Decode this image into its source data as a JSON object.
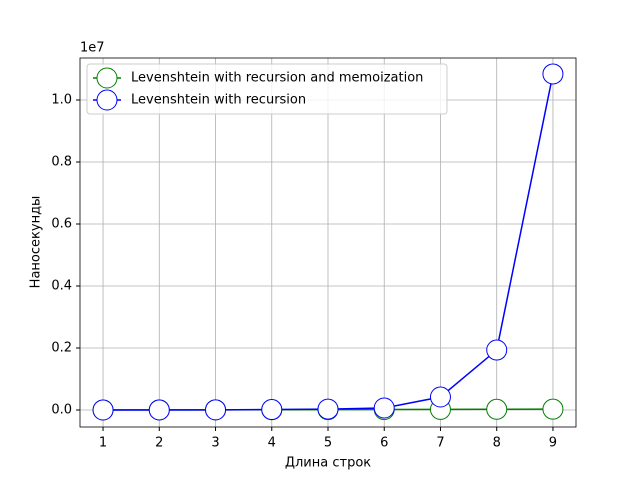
{
  "chart_data": {
    "type": "line",
    "x_label": "Длина строк",
    "y_label": "Наносекунды",
    "offset_label": "1e7",
    "x": [
      1,
      2,
      3,
      4,
      5,
      6,
      7,
      8,
      9
    ],
    "series": [
      {
        "name": "Levenshtein with recursion and memoization",
        "color": "#008000",
        "values": [
          2000,
          4000,
          6000,
          9000,
          12000,
          15000,
          19000,
          23000,
          27000
        ]
      },
      {
        "name": "Levenshtein with recursion",
        "color": "#0000ff",
        "values": [
          500,
          1500,
          5000,
          15000,
          30000,
          65000,
          420000,
          1935000,
          10840000
        ]
      }
    ],
    "xlim": [
      0.59,
      9.41
    ],
    "xticks": [
      1,
      2,
      3,
      4,
      5,
      6,
      7,
      8,
      9
    ],
    "ylim": [
      -548000,
      11355000
    ],
    "yticks": [
      {
        "value": 0,
        "label": "0.0"
      },
      {
        "value": 2000000,
        "label": "0.2"
      },
      {
        "value": 4000000,
        "label": "0.4"
      },
      {
        "value": 6000000,
        "label": "0.6"
      },
      {
        "value": 8000000,
        "label": "0.8"
      },
      {
        "value": 10000000,
        "label": "1.0"
      }
    ],
    "grid": true,
    "legend": "upper-left"
  }
}
